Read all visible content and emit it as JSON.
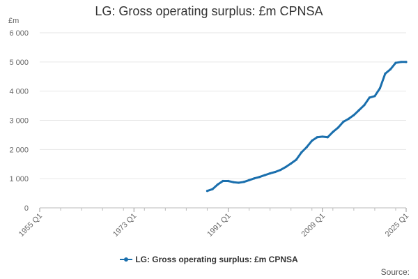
{
  "colors": {
    "series": "#1a6fad",
    "grid": "#e6e6e6",
    "axis_text": "#666666"
  },
  "chart_data": {
    "type": "line",
    "title": "LG: Gross operating surplus: £m CPNSA",
    "ylabel": "£m",
    "xlabel": "",
    "ylim": [
      0,
      6000
    ],
    "xlim": [
      1955,
      2025
    ],
    "y_ticks": [
      0,
      1000,
      2000,
      3000,
      4000,
      5000,
      6000
    ],
    "y_tick_labels": [
      "0",
      "1 000",
      "2 000",
      "3 000",
      "4 000",
      "5 000",
      "6 000"
    ],
    "x_ticks": [
      1955,
      1973,
      1991,
      2009,
      2025
    ],
    "x_tick_labels": [
      "1955 Q1",
      "1973 Q1",
      "1991 Q1",
      "2009 Q1",
      "2025 Q1"
    ],
    "grid": true,
    "legend_position": "bottom",
    "series": [
      {
        "name": "LG: Gross operating surplus: £m CPNSA",
        "x": [
          1987,
          1988,
          1989,
          1990,
          1991,
          1992,
          1993,
          1994,
          1995,
          1996,
          1997,
          1998,
          1999,
          2000,
          2001,
          2002,
          2003,
          2004,
          2005,
          2006,
          2007,
          2008,
          2009,
          2010,
          2011,
          2012,
          2013,
          2014,
          2015,
          2016,
          2017,
          2018,
          2019,
          2020,
          2021,
          2022,
          2023,
          2024,
          2025
        ],
        "y": [
          580,
          640,
          800,
          920,
          920,
          880,
          860,
          890,
          950,
          1010,
          1060,
          1120,
          1180,
          1230,
          1300,
          1400,
          1520,
          1650,
          1900,
          2080,
          2300,
          2420,
          2440,
          2420,
          2600,
          2750,
          2950,
          3050,
          3180,
          3350,
          3520,
          3780,
          3830,
          4100,
          4600,
          4750,
          4970,
          5000,
          5000
        ]
      }
    ]
  },
  "legend": {
    "label": "LG: Gross operating surplus: £m CPNSA"
  },
  "source": {
    "label": "Source:"
  }
}
